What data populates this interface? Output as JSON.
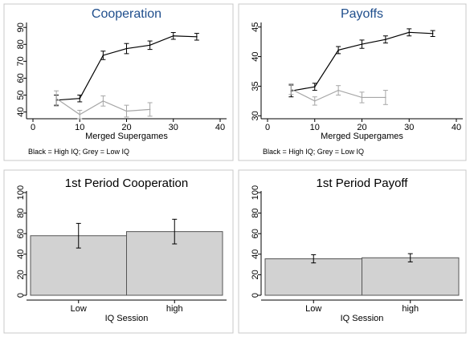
{
  "chart_data": [
    {
      "type": "line",
      "title": "Cooperation",
      "xlabel": "Merged Supergames",
      "ylabel": "",
      "xlim": [
        0,
        40
      ],
      "ylim": [
        36,
        92
      ],
      "xticks": [
        0,
        10,
        20,
        30,
        40
      ],
      "yticks": [
        40,
        50,
        60,
        70,
        80,
        90
      ],
      "note": "Black = High IQ; Grey = Low IQ",
      "series": [
        {
          "name": "High IQ",
          "color": "#000000",
          "x": [
            5,
            10,
            15,
            20,
            25,
            30,
            35
          ],
          "y": [
            47,
            48,
            73.5,
            77.5,
            79.5,
            85,
            84.5
          ],
          "err": [
            3,
            2,
            2.5,
            3,
            2.5,
            2,
            2
          ]
        },
        {
          "name": "Low IQ",
          "color": "#a6a6a6",
          "x": [
            5,
            10,
            15,
            20,
            25
          ],
          "y": [
            48,
            38.5,
            46.5,
            40.5,
            41.5
          ],
          "err": [
            4.5,
            2.5,
            3,
            3.5,
            4
          ]
        }
      ]
    },
    {
      "type": "line",
      "title": "Payoffs",
      "xlabel": "Merged Supergames",
      "ylabel": "",
      "xlim": [
        0,
        40
      ],
      "ylim": [
        29.5,
        45.5
      ],
      "xticks": [
        0,
        10,
        20,
        30,
        40
      ],
      "yticks": [
        30,
        35,
        40,
        45
      ],
      "note": "Black = High IQ; Grey = Low IQ",
      "series": [
        {
          "name": "High IQ",
          "color": "#000000",
          "x": [
            5,
            10,
            15,
            20,
            25,
            30,
            35
          ],
          "y": [
            34.2,
            34.9,
            41.1,
            42.1,
            42.9,
            44.1,
            43.9
          ],
          "err": [
            1,
            0.6,
            0.6,
            0.7,
            0.6,
            0.6,
            0.5
          ]
        },
        {
          "name": "Low IQ",
          "color": "#a6a6a6",
          "x": [
            5,
            10,
            15,
            20,
            25
          ],
          "y": [
            34.5,
            32.5,
            34.3,
            33.1,
            33.1
          ],
          "err": [
            0.9,
            0.7,
            0.8,
            0.9,
            1.2
          ]
        }
      ]
    },
    {
      "type": "bar",
      "title": "1st Period Cooperation",
      "xlabel": "IQ Session",
      "ylabel": "",
      "ylim": [
        0,
        100
      ],
      "yticks": [
        0,
        20,
        40,
        60,
        80,
        100
      ],
      "categories": [
        "Low",
        "high"
      ],
      "values": [
        58,
        62
      ],
      "err": [
        12,
        12
      ],
      "bar_color": "#d2d2d2"
    },
    {
      "type": "bar",
      "title": "1st Period Payoff",
      "xlabel": "IQ Session",
      "ylabel": "",
      "ylim": [
        0,
        100
      ],
      "yticks": [
        0,
        20,
        40,
        60,
        80,
        100
      ],
      "categories": [
        "Low",
        "high"
      ],
      "values": [
        35.5,
        36.5
      ],
      "err": [
        4,
        4
      ],
      "bar_color": "#d2d2d2"
    }
  ]
}
